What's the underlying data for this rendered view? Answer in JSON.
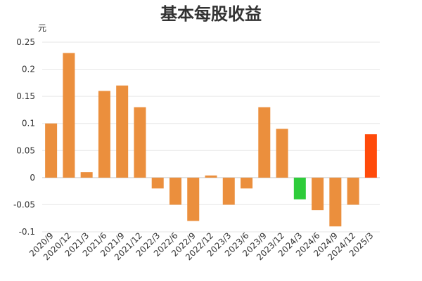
{
  "chart_data": {
    "type": "bar",
    "title": "基本每股收益",
    "unit_label": "元",
    "xlabel": "",
    "ylabel": "",
    "categories": [
      "2020/9",
      "2020/12",
      "2021/3",
      "2021/6",
      "2021/9",
      "2021/12",
      "2022/3",
      "2022/6",
      "2022/9",
      "2022/12",
      "2023/3",
      "2023/6",
      "2023/9",
      "2023/12",
      "2024/3",
      "2024/6",
      "2024/9",
      "2024/12",
      "2025/3"
    ],
    "values": [
      0.1,
      0.23,
      0.01,
      0.16,
      0.17,
      0.13,
      -0.02,
      -0.05,
      -0.08,
      0.004,
      -0.05,
      -0.02,
      0.13,
      0.09,
      -0.04,
      -0.06,
      -0.09,
      -0.05,
      0.08
    ],
    "bar_colors": [
      "#eb8f3d",
      "#eb8f3d",
      "#eb8f3d",
      "#eb8f3d",
      "#eb8f3d",
      "#eb8f3d",
      "#eb8f3d",
      "#eb8f3d",
      "#eb8f3d",
      "#eb8f3d",
      "#eb8f3d",
      "#eb8f3d",
      "#eb8f3d",
      "#eb8f3d",
      "#2ecc3a",
      "#eb8f3d",
      "#eb8f3d",
      "#eb8f3d",
      "#ff4a0a"
    ],
    "y_ticks": [
      "0.25",
      "0.2",
      "0.15",
      "0.1",
      "0.05",
      "0",
      "-0.05",
      "-0.1"
    ],
    "ylim": [
      -0.1,
      0.25
    ],
    "grid": true,
    "legend": false
  }
}
